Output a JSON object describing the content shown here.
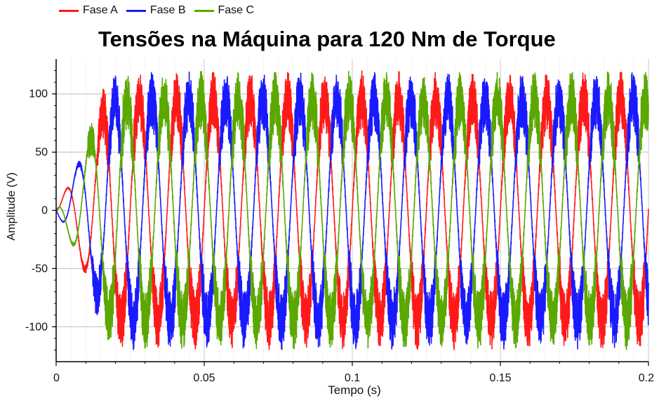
{
  "chart_data": {
    "type": "line",
    "title": "Tensões na Máquina para 120 Nm de Torque",
    "xlabel": "Tempo (s)",
    "ylabel": "Amplitude (V)",
    "xlim": [
      0,
      0.2
    ],
    "ylim": [
      -130,
      130
    ],
    "xticks": [
      0,
      0.05,
      0.1,
      0.15,
      0.2
    ],
    "xtick_labels": [
      "0",
      "0.05",
      "0.1",
      "0.15",
      "0.2"
    ],
    "yticks": [
      100,
      50,
      0,
      -50,
      -100
    ],
    "ytick_labels": [
      "100",
      "50",
      "0",
      "-50",
      "-100"
    ],
    "grid": true,
    "legend_position": "top-left",
    "frequency_hz": 80,
    "steady_amplitude": 95,
    "switching_ripple": 25,
    "series": [
      {
        "name": "Fase A",
        "color": "#ff1a1a",
        "phase_deg": 0
      },
      {
        "name": "Fase B",
        "color": "#1a1aff",
        "phase_deg": -120
      },
      {
        "name": "Fase C",
        "color": "#5aa800",
        "phase_deg": 120
      }
    ]
  }
}
